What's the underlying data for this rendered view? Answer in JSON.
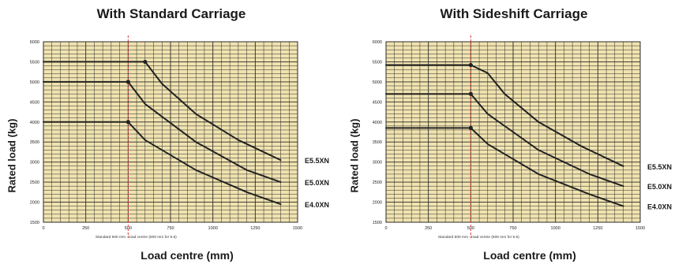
{
  "colors": {
    "plot_bg": "#f0e3b0",
    "grid": "#2a2a2a",
    "curve": "#222222",
    "ref_line": "#e03a3a"
  },
  "chart_data": [
    {
      "type": "line",
      "title": "With Standard Carriage",
      "xlabel": "Load centre (mm)",
      "ylabel": "Rated load (kg)",
      "xlim": [
        0,
        1500
      ],
      "ylim": [
        1500,
        6000
      ],
      "xticks": [
        0,
        250,
        500,
        750,
        1000,
        1250,
        1500
      ],
      "yticks": [
        1500,
        2000,
        2500,
        3000,
        3500,
        4000,
        4500,
        5000,
        5500,
        6000
      ],
      "ref_line_x": 500,
      "note": "Standard 500 mm - load centre (600 mm for 5.5)",
      "grid": true,
      "series": [
        {
          "name": "E5.5XN",
          "marker_x": 600,
          "x": [
            0,
            600,
            700,
            900,
            1150,
            1400
          ],
          "y": [
            5500,
            5500,
            4950,
            4200,
            3550,
            3050
          ]
        },
        {
          "name": "E5.0XN",
          "marker_x": 500,
          "x": [
            0,
            500,
            600,
            900,
            1200,
            1400
          ],
          "y": [
            5000,
            5000,
            4450,
            3500,
            2800,
            2500
          ]
        },
        {
          "name": "E4.0XN",
          "marker_x": 500,
          "x": [
            0,
            500,
            600,
            900,
            1200,
            1400
          ],
          "y": [
            4000,
            4000,
            3550,
            2800,
            2250,
            1950
          ]
        }
      ]
    },
    {
      "type": "line",
      "title": "With Sideshift Carriage",
      "xlabel": "Load centre (mm)",
      "ylabel": "Rated load (kg)",
      "xlim": [
        0,
        1500
      ],
      "ylim": [
        1500,
        6000
      ],
      "xticks": [
        0,
        250,
        500,
        750,
        1000,
        1250,
        1500
      ],
      "yticks": [
        1500,
        2000,
        2500,
        3000,
        3500,
        4000,
        4500,
        5000,
        5500,
        6000
      ],
      "ref_line_x": 500,
      "note": "Standard 500 mm - load centre (500 mm for 5.5)",
      "grid": true,
      "series": [
        {
          "name": "E5.5XN",
          "marker_x": 500,
          "x": [
            0,
            500,
            600,
            700,
            900,
            1150,
            1400
          ],
          "y": [
            5420,
            5420,
            5220,
            4700,
            4000,
            3400,
            2900
          ]
        },
        {
          "name": "E5.0XN",
          "marker_x": 500,
          "x": [
            0,
            500,
            600,
            900,
            1200,
            1400
          ],
          "y": [
            4700,
            4700,
            4200,
            3300,
            2700,
            2400
          ]
        },
        {
          "name": "E4.0XN",
          "marker_x": 500,
          "x": [
            0,
            500,
            600,
            900,
            1200,
            1400
          ],
          "y": [
            3850,
            3850,
            3450,
            2700,
            2200,
            1900
          ]
        }
      ]
    }
  ]
}
